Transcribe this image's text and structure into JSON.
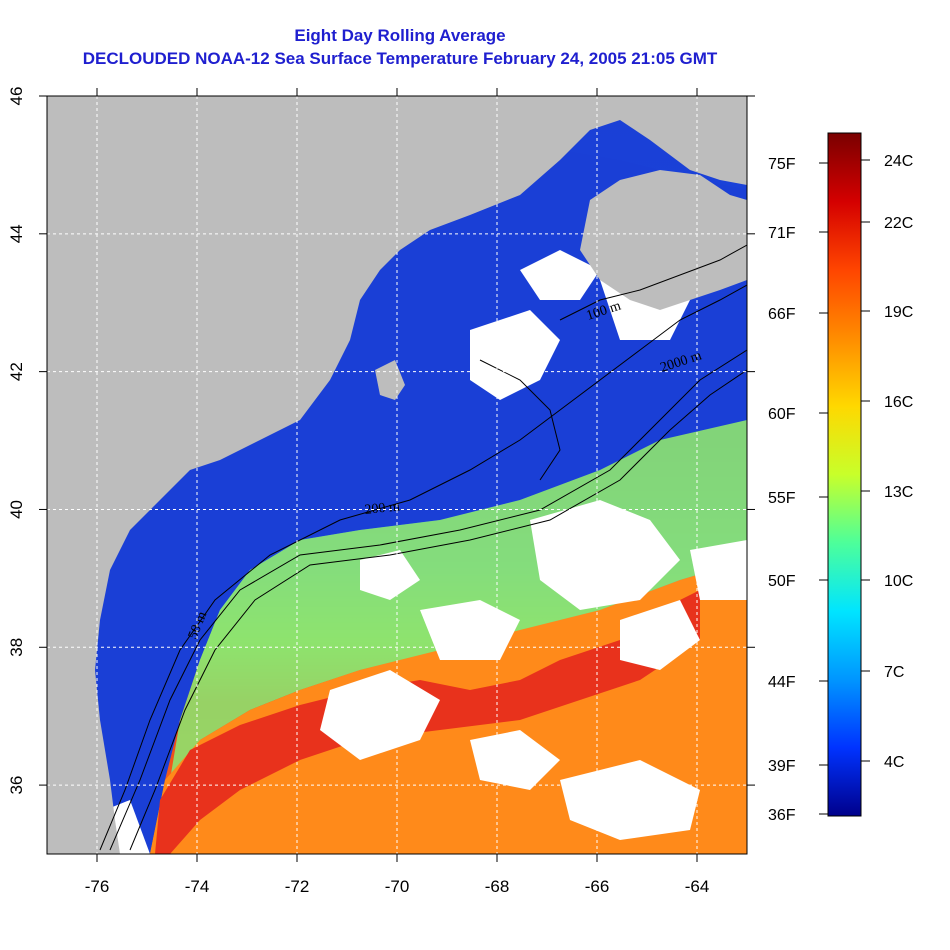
{
  "header": {
    "title": "Eight Day Rolling Average",
    "subtitle": "DECLOUDED NOAA-12 Sea Surface Temperature February 24, 2005 21:05 GMT"
  },
  "map": {
    "lon_range": [
      -77,
      -63
    ],
    "lat_range": [
      35,
      46
    ],
    "lon_ticks": [
      "-76",
      "-74",
      "-72",
      "-70",
      "-68",
      "-66",
      "-64"
    ],
    "lat_ticks": [
      "36",
      "38",
      "40",
      "42",
      "44",
      "46"
    ],
    "contour_labels": [
      "100 m",
      "2000 m",
      "200 m",
      "50 m"
    ],
    "colors": {
      "land": "#bdbdbd",
      "cloud": "#ffffff",
      "cold": "#1a3fd6",
      "cool": "#2fa0ff",
      "mild": "#8ee36e",
      "warm": "#ff8a1a",
      "hot": "#e8321c"
    }
  },
  "colorbar": {
    "celsius_labels": [
      "24C",
      "22C",
      "19C",
      "16C",
      "13C",
      "10C",
      "7C",
      "4C"
    ],
    "fahrenheit_labels": [
      "75F",
      "71F",
      "66F",
      "60F",
      "55F",
      "50F",
      "44F",
      "39F",
      "36F"
    ],
    "gradient_stops": [
      "#7a0000",
      "#d40000",
      "#ff4500",
      "#ff8c00",
      "#ffd800",
      "#c8ff2a",
      "#4dff9a",
      "#00e5ff",
      "#0096ff",
      "#0033ff",
      "#00008b"
    ]
  }
}
